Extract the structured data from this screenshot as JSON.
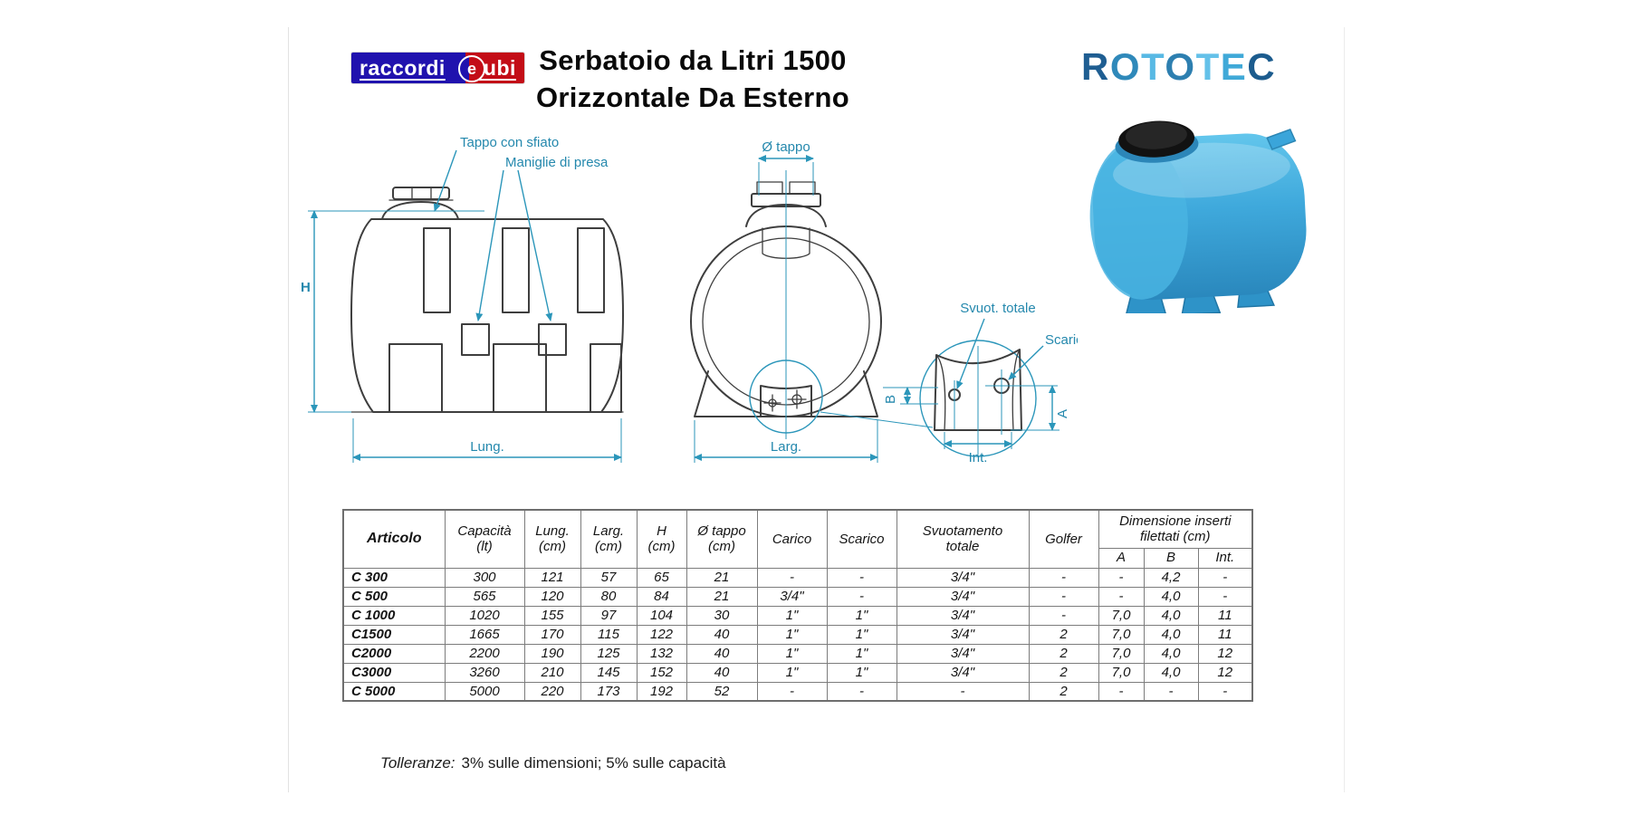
{
  "page": {
    "title_line1": "Serbatoio da Litri 1500",
    "title_line2": "Orizzontale Da Esterno",
    "footer_label": "Tolleranze:",
    "footer_text": "3% sulle dimensioni; 5% sulle capacità"
  },
  "logos": {
    "raccorditubi": {
      "word1": "raccordi",
      "word2": "e",
      "word3": "tubi",
      "blue": "#2012ae",
      "red": "#c30d17"
    },
    "rototec": {
      "text": "ROTOTEC",
      "letters": [
        {
          "ch": "R",
          "color": "#1f5e92"
        },
        {
          "ch": "O",
          "color": "#2f89ba"
        },
        {
          "ch": "T",
          "color": "#58b9e4"
        },
        {
          "ch": "O",
          "color": "#2d7fb0"
        },
        {
          "ch": "T",
          "color": "#64c1e9"
        },
        {
          "ch": "E",
          "color": "#40a9d8"
        },
        {
          "ch": "C",
          "color": "#1c5c8e"
        }
      ]
    }
  },
  "diagram": {
    "accent": "#2b96ba",
    "tank_blue": "#3fa9dc",
    "labels": {
      "tappo": "Tappo con sfiato",
      "maniglie": "Maniglie di presa",
      "h": "H",
      "lung": "Lung.",
      "diam_tappo": "Ø tappo",
      "larg": "Larg.",
      "svuot": "Svuot. totale",
      "scarico": "Scarico",
      "b": "B",
      "a": "A",
      "int": "Int."
    }
  },
  "table": {
    "col_headers": [
      "Articolo",
      "Capacità\n(lt)",
      "Lung.\n(cm)",
      "Larg.\n(cm)",
      "H\n(cm)",
      "Ø tappo\n(cm)",
      "Carico",
      "Scarico",
      "Svuotamento\ntotale",
      "Golfer"
    ],
    "group_header": "Dimensione inserti\nfilettati (cm)",
    "sub_headers": [
      "A",
      "B",
      "Int."
    ],
    "rows": [
      [
        "C 300",
        "300",
        "121",
        "57",
        "65",
        "21",
        "-",
        "-",
        "3/4\"",
        "-",
        "-",
        "4,2",
        "-"
      ],
      [
        "C 500",
        "565",
        "120",
        "80",
        "84",
        "21",
        "3/4\"",
        "-",
        "3/4\"",
        "-",
        "-",
        "4,0",
        "-"
      ],
      [
        "C 1000",
        "1020",
        "155",
        "97",
        "104",
        "30",
        "1\"",
        "1\"",
        "3/4\"",
        "-",
        "7,0",
        "4,0",
        "11"
      ],
      [
        "C1500",
        "1665",
        "170",
        "115",
        "122",
        "40",
        "1\"",
        "1\"",
        "3/4\"",
        "2",
        "7,0",
        "4,0",
        "11"
      ],
      [
        "C2000",
        "2200",
        "190",
        "125",
        "132",
        "40",
        "1\"",
        "1\"",
        "3/4\"",
        "2",
        "7,0",
        "4,0",
        "12"
      ],
      [
        "C3000",
        "3260",
        "210",
        "145",
        "152",
        "40",
        "1\"",
        "1\"",
        "3/4\"",
        "2",
        "7,0",
        "4,0",
        "12"
      ],
      [
        "C 5000",
        "5000",
        "220",
        "173",
        "192",
        "52",
        "-",
        "-",
        "-",
        "2",
        "-",
        "-",
        "-"
      ]
    ]
  }
}
